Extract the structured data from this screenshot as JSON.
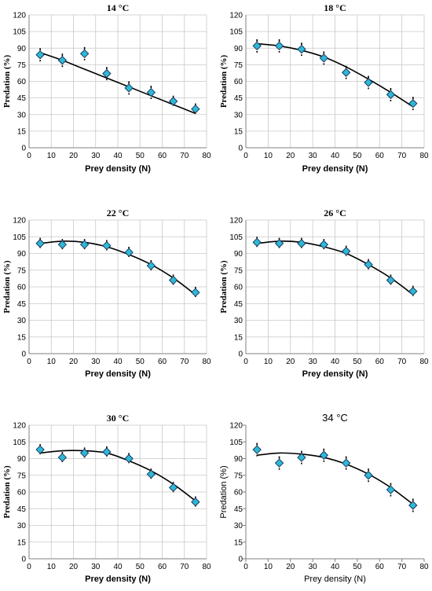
{
  "chart_data": [
    {
      "type": "scatter",
      "title": "14 °C",
      "xlabel": "Prey density (N)",
      "ylabel": "Predation (%)",
      "xlim": [
        0,
        80
      ],
      "ylim": [
        0,
        120
      ],
      "xticks": [
        0,
        10,
        20,
        30,
        40,
        50,
        60,
        70,
        80
      ],
      "yticks": [
        0,
        15,
        30,
        45,
        60,
        75,
        90,
        105,
        120
      ],
      "grid": true,
      "x": [
        5,
        15,
        25,
        35,
        45,
        55,
        65,
        75
      ],
      "y": [
        84,
        79,
        85,
        67,
        54,
        50,
        42,
        35
      ],
      "err": [
        6,
        6,
        6,
        6,
        6,
        6,
        5,
        5
      ],
      "fit": [
        86,
        79,
        71,
        63,
        55,
        47,
        39,
        31
      ]
    },
    {
      "type": "scatter",
      "title": "18 °C",
      "xlabel": "Prey density (N)",
      "ylabel": "Predation (%)",
      "xlim": [
        0,
        80
      ],
      "ylim": [
        0,
        120
      ],
      "xticks": [
        0,
        10,
        20,
        30,
        40,
        50,
        60,
        70,
        80
      ],
      "yticks": [
        0,
        15,
        30,
        45,
        60,
        75,
        90,
        105,
        120
      ],
      "grid": true,
      "x": [
        5,
        15,
        25,
        35,
        45,
        55,
        65,
        75
      ],
      "y": [
        92,
        92,
        89,
        81,
        68,
        59,
        48,
        40
      ],
      "err": [
        6,
        6,
        6,
        6,
        6,
        6,
        6,
        6
      ],
      "fit": [
        94,
        92,
        88,
        82,
        73,
        62,
        50,
        37
      ]
    },
    {
      "type": "scatter",
      "title": "22 °C",
      "xlabel": "Prey density (N)",
      "ylabel": "Predation (%)",
      "xlim": [
        0,
        80
      ],
      "ylim": [
        0,
        120
      ],
      "xticks": [
        0,
        10,
        20,
        30,
        40,
        50,
        60,
        70,
        80
      ],
      "yticks": [
        0,
        15,
        30,
        45,
        60,
        75,
        90,
        105,
        120
      ],
      "grid": true,
      "x": [
        5,
        15,
        25,
        35,
        45,
        55,
        65,
        75
      ],
      "y": [
        99,
        98,
        98,
        97,
        91,
        79,
        66,
        55
      ],
      "err": [
        5,
        5,
        5,
        5,
        5,
        5,
        5,
        5
      ],
      "fit": [
        99,
        101,
        100,
        96,
        89,
        80,
        68,
        53
      ]
    },
    {
      "type": "scatter",
      "title": "26 °C",
      "xlabel": "Prey density (N)",
      "ylabel": "Predation (%)",
      "xlim": [
        0,
        80
      ],
      "ylim": [
        0,
        120
      ],
      "xticks": [
        0,
        10,
        20,
        30,
        40,
        50,
        60,
        70,
        80
      ],
      "yticks": [
        0,
        15,
        30,
        45,
        60,
        75,
        90,
        105,
        120
      ],
      "grid": true,
      "x": [
        5,
        15,
        25,
        35,
        45,
        55,
        65,
        75
      ],
      "y": [
        100,
        99,
        99,
        98,
        92,
        80,
        66,
        56
      ],
      "err": [
        5,
        5,
        5,
        5,
        5,
        5,
        5,
        5
      ],
      "fit": [
        99,
        101,
        100,
        96,
        90,
        80,
        68,
        53
      ]
    },
    {
      "type": "scatter",
      "title": "30 °C",
      "xlabel": "Prey density (N)",
      "ylabel": "Predation (%)",
      "xlim": [
        0,
        80
      ],
      "ylim": [
        0,
        120
      ],
      "xticks": [
        0,
        10,
        20,
        30,
        40,
        50,
        60,
        70,
        80
      ],
      "yticks": [
        0,
        15,
        30,
        45,
        60,
        75,
        90,
        105,
        120
      ],
      "grid": true,
      "x": [
        5,
        15,
        25,
        35,
        45,
        55,
        65,
        75
      ],
      "y": [
        98,
        91,
        95,
        96,
        90,
        76,
        64,
        51
      ],
      "err": [
        5,
        5,
        5,
        5,
        5,
        5,
        5,
        5
      ],
      "fit": [
        95,
        97,
        97,
        95,
        88,
        79,
        67,
        52
      ]
    },
    {
      "type": "scatter",
      "title": "34 °C",
      "xlabel": "Prey density (N)",
      "ylabel": "Predation (%)",
      "xlim": [
        0,
        80
      ],
      "ylim": [
        0,
        120
      ],
      "xticks": [
        0,
        10,
        20,
        30,
        40,
        50,
        60,
        70,
        80
      ],
      "yticks": [
        0,
        15,
        30,
        45,
        60,
        75,
        90,
        105,
        120
      ],
      "grid": false,
      "x": [
        5,
        15,
        25,
        35,
        45,
        55,
        65,
        75
      ],
      "y": [
        98,
        86,
        91,
        93,
        86,
        75,
        62,
        48
      ],
      "err": [
        6,
        6,
        6,
        6,
        6,
        6,
        6,
        6
      ],
      "fit": [
        93,
        95,
        94,
        91,
        85,
        76,
        64,
        49
      ]
    }
  ],
  "colors": {
    "marker_fill": "#2eb8d8",
    "marker_edge": "#1b3a5c",
    "grid": "#c8c8c8",
    "fit_line": "#000000",
    "axis": "#808080"
  }
}
